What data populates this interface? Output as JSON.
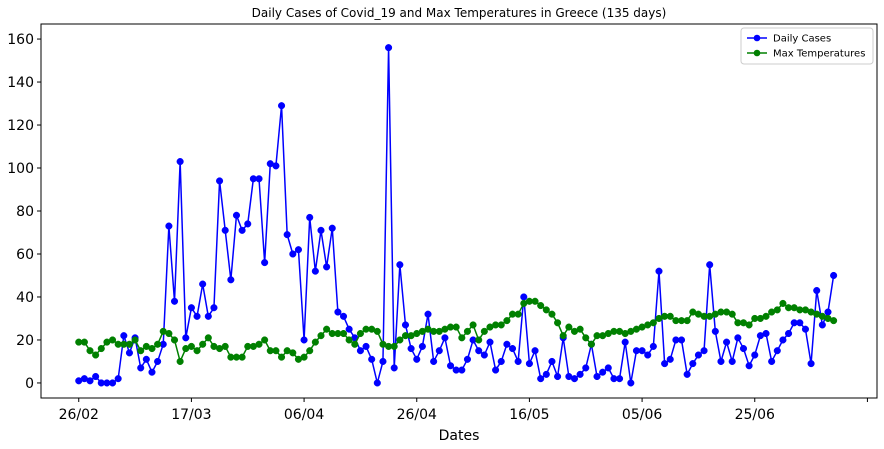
{
  "chart_data": {
    "type": "line",
    "title": "Daily Cases of Covid_19 and Max Temperatures in Greece (135 days)",
    "xlabel": "Dates",
    "ylabel": "",
    "x_ticks": [
      {
        "label": "26/02",
        "index": 0
      },
      {
        "label": "17/03",
        "index": 20
      },
      {
        "label": "06/04",
        "index": 40
      },
      {
        "label": "26/04",
        "index": 60
      },
      {
        "label": "16/05",
        "index": 80
      },
      {
        "label": "05/06",
        "index": 100
      },
      {
        "label": "25/06",
        "index": 120
      }
    ],
    "xlim": [
      -6.7,
      141.7
    ],
    "ylim": [
      -7,
      167
    ],
    "y_ticks": [
      0,
      20,
      40,
      60,
      80,
      100,
      120,
      140,
      160
    ],
    "legend": {
      "position": "top-right"
    },
    "series": [
      {
        "name": "Daily Cases",
        "color": "#0000ff",
        "values": [
          1,
          2,
          1,
          3,
          0,
          0,
          0,
          2,
          22,
          14,
          21,
          7,
          11,
          5,
          10,
          18,
          73,
          38,
          103,
          21,
          35,
          31,
          46,
          31,
          35,
          94,
          71,
          48,
          78,
          71,
          74,
          95,
          95,
          56,
          102,
          101,
          129,
          69,
          60,
          62,
          20,
          77,
          52,
          71,
          54,
          72,
          33,
          31,
          25,
          21,
          15,
          17,
          11,
          0,
          10,
          156,
          7,
          55,
          27,
          16,
          11,
          17,
          32,
          10,
          15,
          21,
          8,
          6,
          6,
          11,
          20,
          15,
          13,
          19,
          6,
          10,
          18,
          16,
          10,
          40,
          9,
          15,
          2,
          4,
          10,
          3,
          21,
          3,
          2,
          4,
          7,
          18,
          3,
          5,
          7,
          2,
          2,
          19,
          0,
          15,
          15,
          13,
          17,
          52,
          9,
          11,
          20,
          20,
          4,
          9,
          13,
          15,
          55,
          24,
          10,
          19,
          10,
          21,
          16,
          8,
          13,
          22,
          23,
          10,
          15,
          20,
          23,
          28,
          28,
          25,
          9,
          43,
          27,
          33,
          50
        ]
      },
      {
        "name": "Max Temperatures",
        "color": "#008000",
        "values": [
          19,
          19,
          15,
          13,
          16,
          19,
          20,
          18,
          18,
          18,
          20,
          15,
          17,
          16,
          18,
          24,
          23,
          20,
          10,
          16,
          17,
          15,
          18,
          21,
          17,
          16,
          17,
          12,
          12,
          12,
          17,
          17,
          18,
          20,
          15,
          15,
          12,
          15,
          14,
          11,
          12,
          15,
          19,
          22,
          25,
          23,
          23,
          23,
          20,
          18,
          23,
          25,
          25,
          24,
          18,
          17,
          17,
          20,
          22,
          22,
          23,
          24,
          25,
          24,
          24,
          25,
          26,
          26,
          21,
          24,
          27,
          20,
          24,
          26,
          27,
          27,
          29,
          32,
          32,
          37,
          38,
          38,
          36,
          34,
          32,
          28,
          22,
          26,
          24,
          25,
          21,
          18,
          22,
          22,
          23,
          24,
          24,
          23,
          24,
          25,
          26,
          27,
          28,
          30,
          31,
          31,
          29,
          29,
          29,
          33,
          32,
          31,
          31,
          32,
          33,
          33,
          32,
          28,
          28,
          27,
          30,
          30,
          31,
          33,
          34,
          37,
          35,
          35,
          34,
          34,
          33,
          32,
          31,
          30,
          29
        ]
      }
    ]
  }
}
